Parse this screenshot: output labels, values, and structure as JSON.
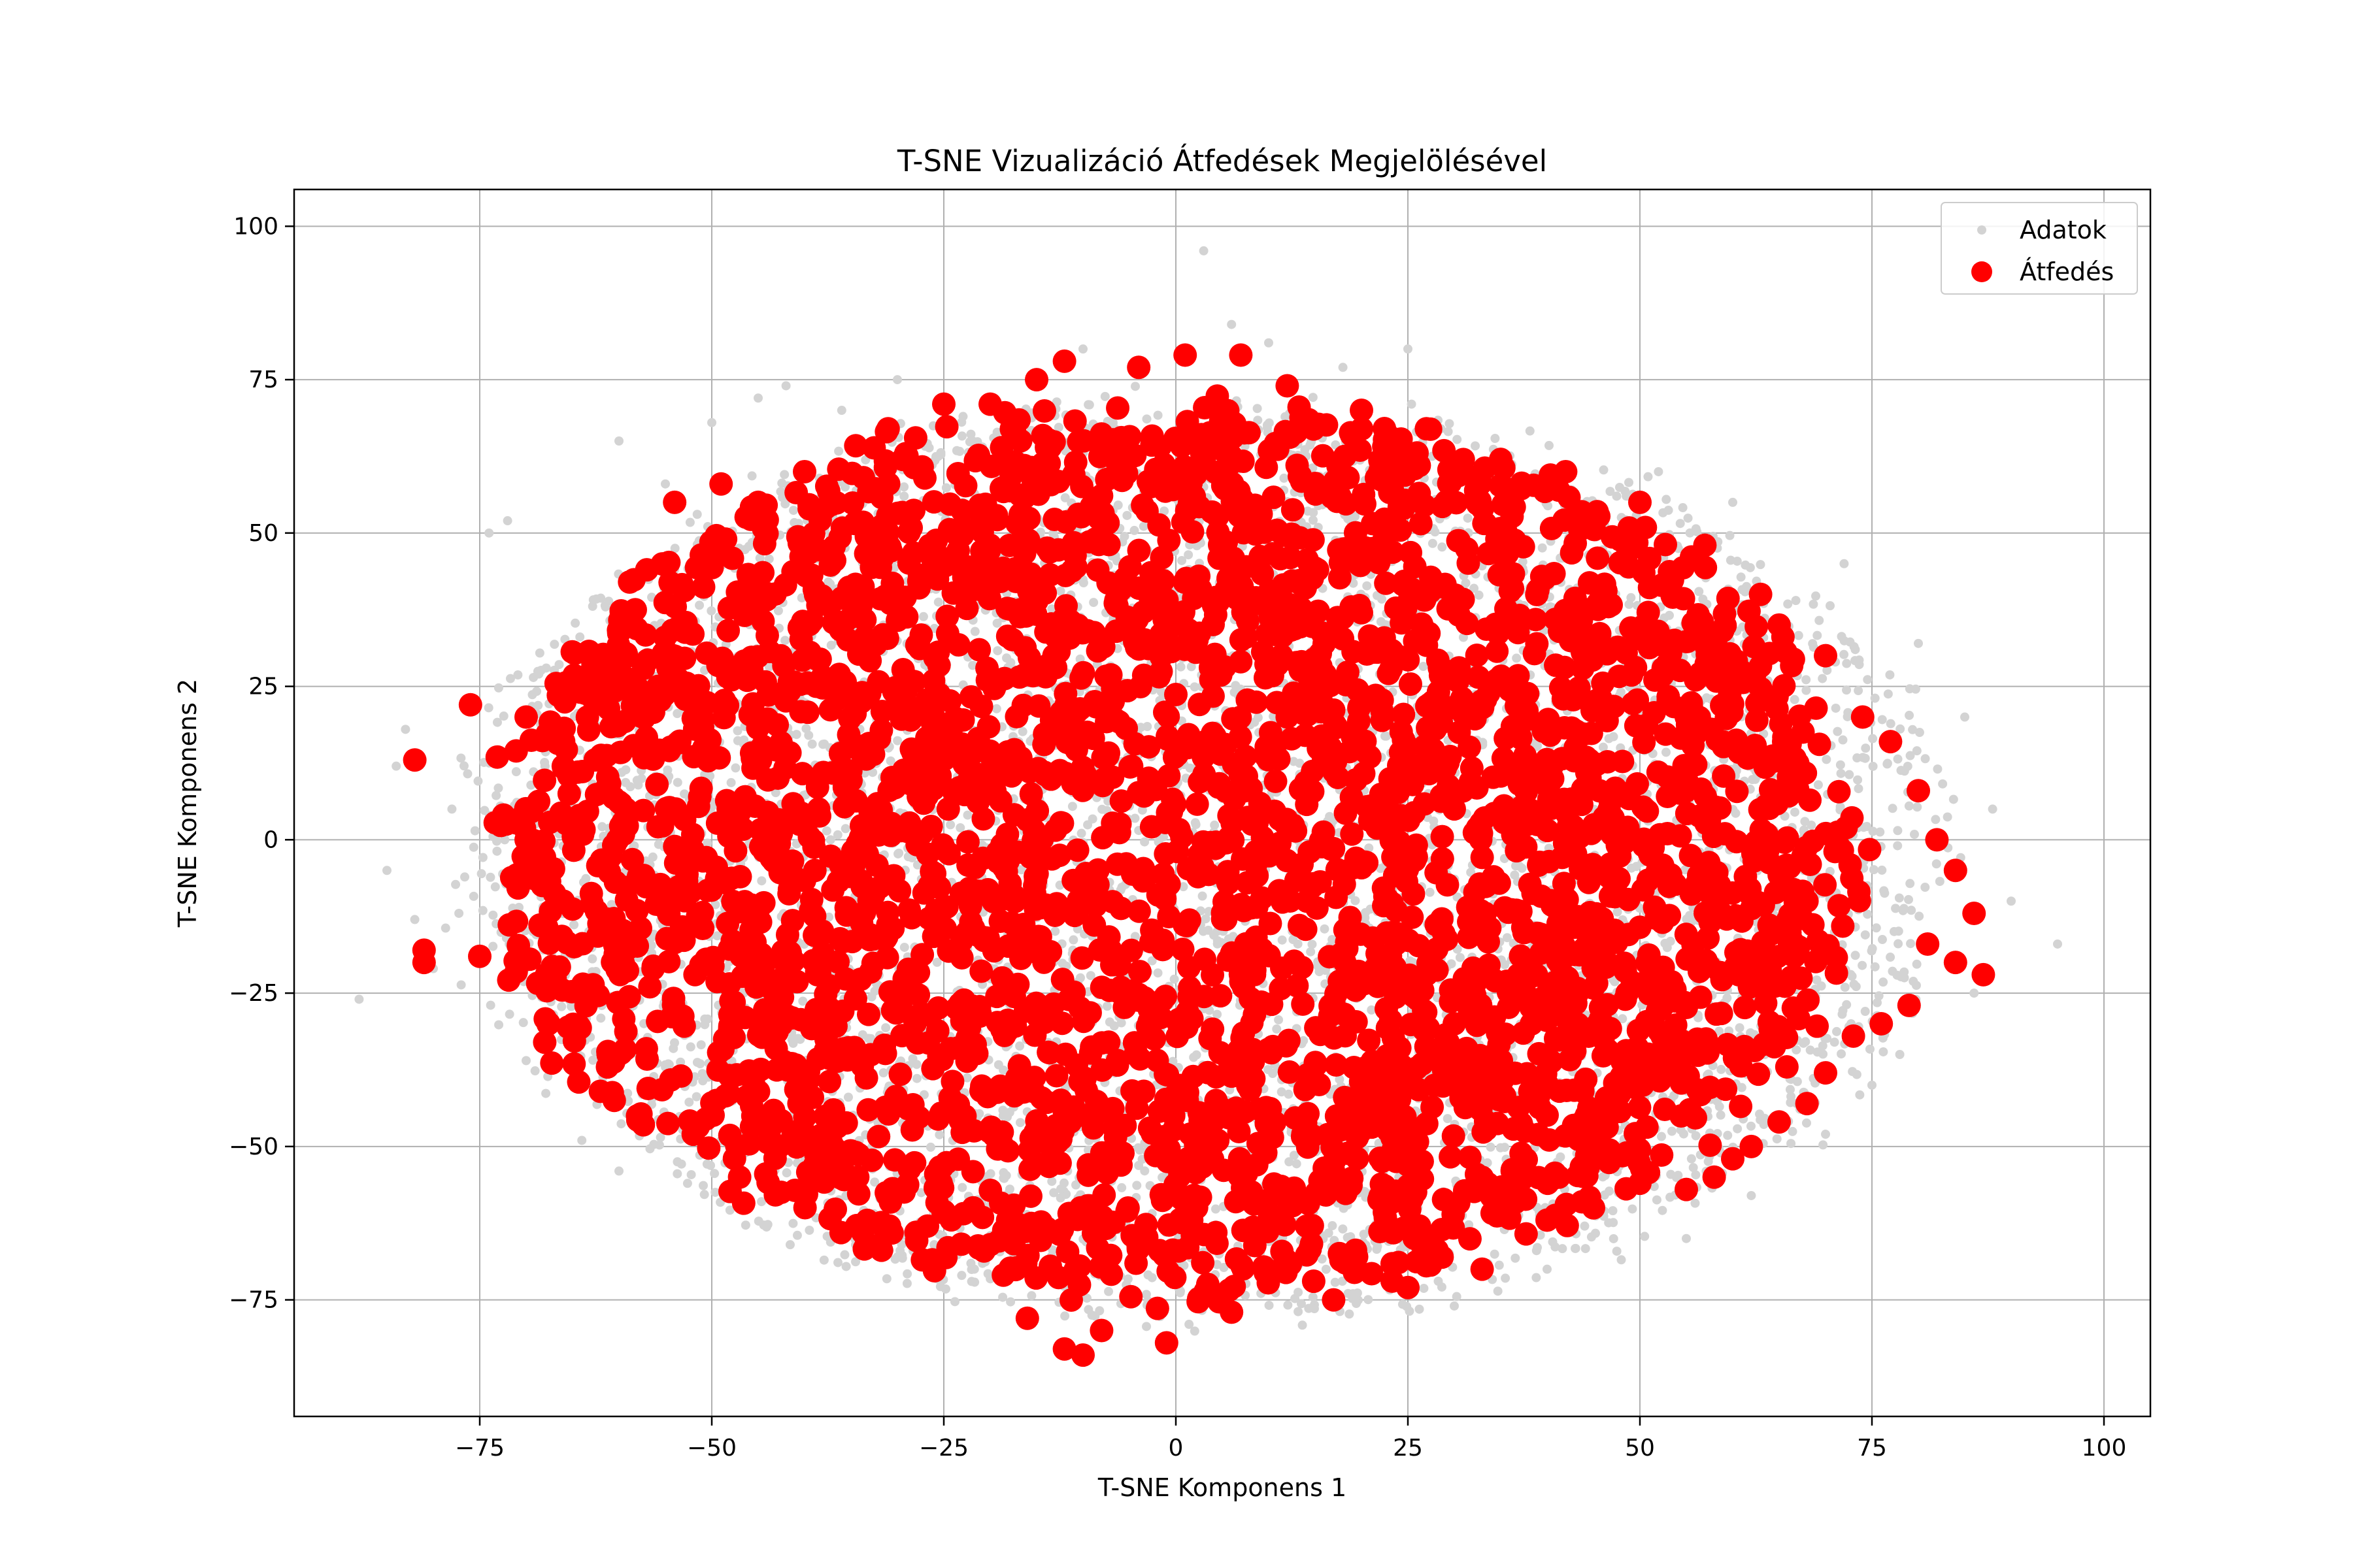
{
  "chart_data": {
    "type": "scatter",
    "title": "T-SNE Vizualizáció Átfedések Megjelölésével",
    "xlabel": "T-SNE Komponens 1",
    "ylabel": "T-SNE Komponens 2",
    "xlim": [
      -95,
      105
    ],
    "ylim": [
      -94,
      106
    ],
    "xticks": [
      -75,
      -50,
      -25,
      0,
      25,
      50,
      75,
      100
    ],
    "yticks": [
      -75,
      -50,
      -25,
      0,
      25,
      50,
      75,
      100
    ],
    "xtick_labels": [
      "−75",
      "−50",
      "−25",
      "0",
      "25",
      "50",
      "75",
      "100"
    ],
    "ytick_labels": [
      "−75",
      "−50",
      "−25",
      "0",
      "25",
      "50",
      "75",
      "100"
    ],
    "grid": true,
    "legend_position": "top-right",
    "series": [
      {
        "name": "Adatok",
        "color": "#d3d3d3",
        "marker_size": "small",
        "distribution": {
          "type": "ellipse",
          "center": [
            3,
            -3
          ],
          "radius_x": 80,
          "radius_y": 75
        },
        "values": [
          [
            -84,
            12
          ],
          [
            -83,
            18
          ],
          [
            -82,
            -13
          ],
          [
            -80,
            -21
          ],
          [
            -72,
            52
          ],
          [
            -70,
            -36
          ],
          [
            -64,
            -49
          ],
          [
            -60,
            -54
          ],
          [
            -55,
            58
          ],
          [
            -50,
            68
          ],
          [
            -45,
            72
          ],
          [
            -42,
            74
          ],
          [
            -36,
            70
          ],
          [
            -30,
            -68
          ],
          [
            -22,
            -72
          ],
          [
            -10,
            80
          ],
          [
            3,
            96
          ],
          [
            6,
            84
          ],
          [
            10,
            81
          ],
          [
            18,
            77
          ],
          [
            30,
            -76
          ],
          [
            40,
            -70
          ],
          [
            52,
            60
          ],
          [
            60,
            55
          ],
          [
            72,
            45
          ],
          [
            80,
            32
          ],
          [
            85,
            20
          ],
          [
            88,
            5
          ],
          [
            90,
            -10
          ],
          [
            95,
            -17
          ],
          [
            86,
            -25
          ],
          [
            75,
            -40
          ],
          [
            70,
            -48
          ],
          [
            62,
            -58
          ],
          [
            55,
            -65
          ],
          [
            -88,
            -26
          ],
          [
            -85,
            -5
          ],
          [
            -78,
            5
          ],
          [
            -30,
            75
          ],
          [
            25,
            80
          ],
          [
            78,
            -35
          ],
          [
            -74,
            50
          ],
          [
            -60,
            65
          ]
        ]
      },
      {
        "name": "Átfedés",
        "color": "#ff0000",
        "marker_size": "large",
        "distribution": {
          "type": "ellipse",
          "center": [
            0,
            -2
          ],
          "radius_x": 73,
          "radius_y": 72
        },
        "values": [
          [
            -82,
            13
          ],
          [
            -81,
            -20
          ],
          [
            -81,
            -18
          ],
          [
            -75,
            -19
          ],
          [
            -76,
            22
          ],
          [
            -70,
            20
          ],
          [
            -68,
            -33
          ],
          [
            -62,
            -41
          ],
          [
            -58,
            -45
          ],
          [
            -52,
            -48
          ],
          [
            -54,
            55
          ],
          [
            -49,
            58
          ],
          [
            -45,
            55
          ],
          [
            -31,
            67
          ],
          [
            -25,
            71
          ],
          [
            -20,
            71
          ],
          [
            -16,
            -78
          ],
          [
            -12,
            -83
          ],
          [
            -10,
            -84
          ],
          [
            -8,
            -80
          ],
          [
            -1,
            -82
          ],
          [
            6,
            -77
          ],
          [
            1,
            79
          ],
          [
            7,
            79
          ],
          [
            -12,
            78
          ],
          [
            -4,
            77
          ],
          [
            20,
            70
          ],
          [
            27,
            67
          ],
          [
            35,
            62
          ],
          [
            42,
            60
          ],
          [
            50,
            55
          ],
          [
            57,
            48
          ],
          [
            63,
            40
          ],
          [
            70,
            30
          ],
          [
            74,
            20
          ],
          [
            77,
            16
          ],
          [
            80,
            8
          ],
          [
            82,
            0
          ],
          [
            84,
            -5
          ],
          [
            86,
            -12
          ],
          [
            87,
            -22
          ],
          [
            84,
            -20
          ],
          [
            81,
            -17
          ],
          [
            79,
            -27
          ],
          [
            76,
            -30
          ],
          [
            73,
            -32
          ],
          [
            70,
            -38
          ],
          [
            68,
            -43
          ],
          [
            65,
            -46
          ],
          [
            62,
            -50
          ],
          [
            60,
            -52
          ],
          [
            58,
            -55
          ],
          [
            55,
            -57
          ],
          [
            50,
            -56
          ],
          [
            45,
            -60
          ],
          [
            40,
            -62
          ],
          [
            33,
            -70
          ],
          [
            25,
            -73
          ],
          [
            17,
            -75
          ],
          [
            -20,
            -66
          ],
          [
            -28,
            -64
          ],
          [
            -40,
            -58
          ],
          [
            -47,
            -55
          ],
          [
            -66,
            12
          ],
          [
            -66,
            -10
          ],
          [
            -62,
            30
          ],
          [
            -57,
            44
          ],
          [
            -40,
            60
          ],
          [
            -15,
            75
          ],
          [
            12,
            74
          ],
          [
            65,
            35
          ],
          [
            68,
            -10
          ],
          [
            55,
            20
          ],
          [
            -70,
            0
          ],
          [
            20,
            37
          ],
          [
            12,
            20
          ],
          [
            30,
            -30
          ],
          [
            -35,
            -55
          ]
        ]
      }
    ]
  }
}
